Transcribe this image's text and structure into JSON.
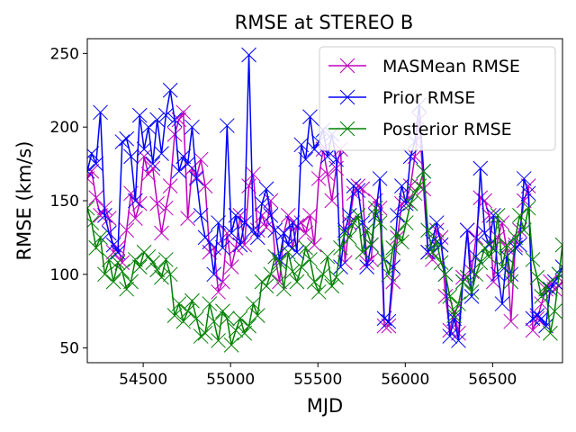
{
  "chart_data": {
    "type": "line",
    "title": "RMSE at STEREO B",
    "xlabel": "MJD",
    "ylabel": "RMSE (km/s)",
    "xlim": [
      54180,
      56900
    ],
    "ylim": [
      40,
      260
    ],
    "xticks": [
      54500,
      55000,
      55500,
      56000,
      56500
    ],
    "yticks": [
      50,
      100,
      150,
      200,
      250
    ],
    "grid": false,
    "legend": "top-right",
    "marker": "x",
    "series": [
      {
        "name": "MASMean RMSE",
        "color": "#bf00bf",
        "x": [
          54180,
          54205,
          54230,
          54255,
          54280,
          54305,
          54330,
          54355,
          54380,
          54405,
          54430,
          54455,
          54480,
          54505,
          54530,
          54555,
          54580,
          54605,
          54630,
          54655,
          54680,
          54705,
          54730,
          54755,
          54780,
          54805,
          54830,
          54855,
          54880,
          54905,
          54930,
          54955,
          54980,
          55005,
          55030,
          55055,
          55080,
          55105,
          55130,
          55155,
          55180,
          55205,
          55230,
          55255,
          55280,
          55305,
          55330,
          55355,
          55380,
          55405,
          55430,
          55455,
          55480,
          55505,
          55530,
          55555,
          55580,
          55605,
          55630,
          55655,
          55680,
          55705,
          55730,
          55755,
          55780,
          55805,
          55830,
          55855,
          55880,
          55905,
          55930,
          55955,
          55980,
          56005,
          56030,
          56055,
          56080,
          56105,
          56130,
          56155,
          56180,
          56205,
          56230,
          56255,
          56280,
          56305,
          56330,
          56355,
          56380,
          56405,
          56430,
          56455,
          56480,
          56505,
          56530,
          56555,
          56580,
          56605,
          56630,
          56655,
          56680,
          56705,
          56730,
          56755,
          56780,
          56805,
          56830,
          56855,
          56880,
          56900
        ],
        "y": [
          165,
          170,
          152,
          140,
          145,
          138,
          115,
          118,
          108,
          130,
          155,
          138,
          148,
          180,
          168,
          172,
          148,
          128,
          145,
          160,
          195,
          205,
          210,
          138,
          172,
          166,
          178,
          160,
          115,
          118,
          88,
          95,
          128,
          105,
          118,
          140,
          120,
          160,
          168,
          130,
          140,
          132,
          150,
          112,
          95,
          128,
          140,
          118,
          133,
          135,
          128,
          140,
          120,
          165,
          185,
          168,
          150,
          172,
          185,
          108,
          135,
          155,
          160,
          158,
          108,
          110,
          150,
          145,
          65,
          65,
          95,
          125,
          148,
          150,
          160,
          180,
          205,
          158,
          115,
          110,
          130,
          125,
          85,
          62,
          75,
          60,
          98,
          130,
          102,
          125,
          152,
          150,
          140,
          95,
          125,
          135,
          118,
          68,
          120,
          130,
          150,
          160,
          62,
          70,
          80,
          90,
          95,
          90,
          92,
          95
        ]
      },
      {
        "name": "Prior RMSE",
        "color": "#0000ff",
        "x": [
          54180,
          54205,
          54230,
          54255,
          54280,
          54305,
          54330,
          54355,
          54380,
          54405,
          54430,
          54455,
          54480,
          54505,
          54530,
          54555,
          54580,
          54605,
          54630,
          54655,
          54680,
          54705,
          54730,
          54755,
          54780,
          54805,
          54830,
          54855,
          54880,
          54905,
          54930,
          54955,
          54980,
          55005,
          55030,
          55055,
          55080,
          55105,
          55130,
          55155,
          55180,
          55205,
          55230,
          55255,
          55280,
          55305,
          55330,
          55355,
          55380,
          55405,
          55430,
          55455,
          55480,
          55505,
          55530,
          55555,
          55580,
          55605,
          55630,
          55655,
          55680,
          55705,
          55730,
          55755,
          55780,
          55805,
          55830,
          55855,
          55880,
          55905,
          55930,
          55955,
          55980,
          56005,
          56030,
          56055,
          56080,
          56105,
          56130,
          56155,
          56180,
          56205,
          56230,
          56255,
          56280,
          56305,
          56330,
          56355,
          56380,
          56405,
          56430,
          56455,
          56480,
          56505,
          56530,
          56555,
          56580,
          56605,
          56630,
          56655,
          56680,
          56705,
          56730,
          56755,
          56780,
          56805,
          56830,
          56855,
          56880,
          56900
        ],
        "y": [
          170,
          182,
          175,
          210,
          140,
          128,
          120,
          115,
          190,
          192,
          180,
          150,
          208,
          185,
          200,
          175,
          205,
          182,
          208,
          225,
          205,
          170,
          180,
          175,
          200,
          165,
          140,
          125,
          122,
          100,
          135,
          118,
          201,
          128,
          140,
          120,
          135,
          249,
          130,
          125,
          148,
          158,
          140,
          130,
          110,
          128,
          120,
          135,
          115,
          188,
          178,
          207,
          185,
          190,
          198,
          180,
          195,
          178,
          105,
          130,
          140,
          160,
          157,
          135,
          105,
          120,
          140,
          165,
          70,
          68,
          105,
          140,
          160,
          148,
          180,
          190,
          215,
          170,
          115,
          122,
          135,
          120,
          100,
          58,
          70,
          55,
          95,
          130,
          85,
          112,
          172,
          128,
          120,
          140,
          100,
          80,
          112,
          100,
          118,
          120,
          165,
          155,
          70,
          72,
          70,
          65,
          90,
          95,
          100,
          105
        ]
      },
      {
        "name": "Posterior RMSE",
        "color": "#008000",
        "x": [
          54180,
          54205,
          54230,
          54255,
          54280,
          54305,
          54330,
          54355,
          54380,
          54405,
          54430,
          54455,
          54480,
          54505,
          54530,
          54555,
          54580,
          54605,
          54630,
          54655,
          54680,
          54705,
          54730,
          54755,
          54780,
          54805,
          54830,
          54855,
          54880,
          54905,
          54930,
          54955,
          54980,
          55005,
          55030,
          55055,
          55080,
          55105,
          55130,
          55155,
          55180,
          55205,
          55230,
          55255,
          55280,
          55305,
          55330,
          55355,
          55380,
          55405,
          55430,
          55455,
          55480,
          55505,
          55530,
          55555,
          55580,
          55605,
          55630,
          55655,
          55680,
          55705,
          55730,
          55755,
          55780,
          55805,
          55830,
          55855,
          55880,
          55905,
          55930,
          55955,
          55980,
          56005,
          56030,
          56055,
          56080,
          56105,
          56130,
          56155,
          56180,
          56205,
          56230,
          56255,
          56280,
          56305,
          56330,
          56355,
          56380,
          56405,
          56430,
          56455,
          56480,
          56505,
          56530,
          56555,
          56580,
          56605,
          56630,
          56655,
          56680,
          56705,
          56730,
          56755,
          56780,
          56805,
          56830,
          56855,
          56880,
          56900
        ],
        "y": [
          145,
          135,
          118,
          125,
          100,
          110,
          95,
          108,
          102,
          90,
          95,
          110,
          105,
          115,
          112,
          108,
          103,
          98,
          110,
          100,
          72,
          80,
          68,
          75,
          82,
          70,
          58,
          60,
          80,
          68,
          55,
          75,
          70,
          52,
          62,
          70,
          60,
          65,
          80,
          72,
          95,
          92,
          100,
          112,
          108,
          90,
          115,
          102,
          95,
          105,
          118,
          110,
          95,
          88,
          100,
          112,
          92,
          98,
          118,
          128,
          125,
          135,
          140,
          115,
          130,
          120,
          145,
          135,
          110,
          100,
          118,
          128,
          122,
          135,
          148,
          155,
          160,
          170,
          130,
          115,
          122,
          108,
          100,
          85,
          72,
          80,
          95,
          98,
          88,
          100,
          108,
          118,
          112,
          118,
          140,
          105,
          120,
          95,
          125,
          140,
          130,
          145,
          110,
          98,
          85,
          92,
          60,
          75,
          100,
          120
        ]
      }
    ]
  }
}
